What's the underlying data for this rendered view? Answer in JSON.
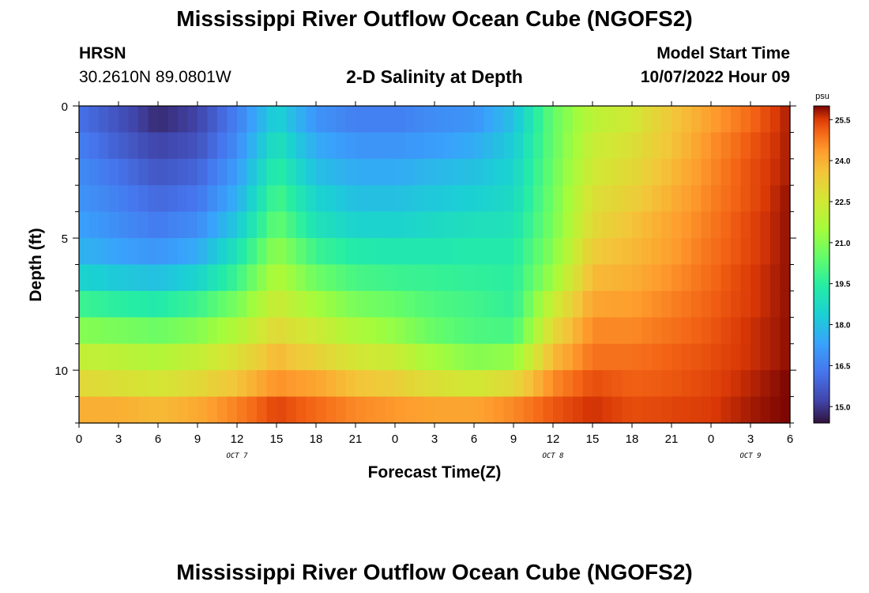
{
  "page": {
    "title_top": "Mississippi River Outflow Ocean Cube (NGOFS2)",
    "title_bottom": "Mississippi River Outflow Ocean Cube (NGOFS2)",
    "station": "HRSN",
    "coordinates": "30.2610N  89.0801W",
    "subtitle": "2-D Salinity at Depth",
    "model_start_label": "Model Start Time",
    "model_start_value": "10/07/2022 Hour 09"
  },
  "chart_data": {
    "type": "heatmap",
    "title": "2-D Salinity at Depth",
    "xlabel": "Forecast Time(Z)",
    "ylabel": "Depth (ft)",
    "x_hours_range": [
      0,
      54
    ],
    "x_tick_hours": [
      0,
      3,
      6,
      9,
      12,
      15,
      18,
      21,
      24,
      27,
      30,
      33,
      36,
      39,
      42,
      45,
      48,
      51,
      54
    ],
    "x_tick_labels": [
      "0",
      "3",
      "6",
      "9",
      "12",
      "15",
      "18",
      "21",
      "0",
      "3",
      "6",
      "9",
      "12",
      "15",
      "18",
      "21",
      "0",
      "3",
      "6"
    ],
    "date_labels": [
      {
        "text": "OCT 7",
        "hour": 12
      },
      {
        "text": "OCT 8",
        "hour": 36
      },
      {
        "text": "OCT 9",
        "hour": 51
      }
    ],
    "y_range_ft": [
      0,
      12
    ],
    "y_tick_values": [
      0,
      5,
      10
    ],
    "y_tick_labels": [
      "0",
      "5",
      "10"
    ],
    "colorbar": {
      "unit": "psu",
      "min": 14.4,
      "max": 26.0,
      "tick_values": [
        15.0,
        16.5,
        18.0,
        19.5,
        21.0,
        22.5,
        24.0,
        25.5
      ],
      "tick_labels": [
        "15.0",
        "16.5",
        "18.0",
        "19.5",
        "21.0",
        "22.5",
        "24.0",
        "25.5"
      ]
    },
    "depth_layers_ft": [
      0.5,
      1.5,
      2.5,
      3.5,
      4.5,
      5.5,
      6.5,
      7.5,
      8.5,
      9.5,
      10.5,
      11.5
    ],
    "time_hours": [
      0,
      3,
      6,
      9,
      12,
      15,
      18,
      21,
      24,
      27,
      30,
      33,
      36,
      39,
      42,
      45,
      48,
      51,
      54
    ],
    "salinity_psu": [
      [
        16.2,
        15.5,
        14.8,
        15.2,
        16.5,
        18.5,
        17.0,
        16.5,
        16.5,
        16.8,
        17.0,
        18.0,
        20.5,
        22.0,
        22.5,
        23.5,
        24.3,
        25.0,
        25.8
      ],
      [
        16.5,
        15.8,
        15.2,
        15.5,
        16.8,
        19.0,
        17.5,
        17.0,
        17.0,
        17.2,
        17.5,
        18.3,
        20.5,
        22.3,
        22.8,
        23.6,
        24.5,
        25.2,
        25.8
      ],
      [
        16.8,
        16.2,
        15.6,
        15.9,
        17.2,
        19.5,
        18.0,
        17.5,
        17.5,
        17.8,
        18.0,
        18.5,
        20.6,
        22.5,
        23.0,
        23.8,
        24.6,
        25.3,
        25.8
      ],
      [
        17.0,
        16.5,
        16.0,
        16.3,
        17.6,
        20.0,
        18.5,
        18.0,
        18.0,
        18.2,
        18.4,
        18.7,
        20.7,
        22.8,
        23.3,
        24.0,
        24.7,
        25.3,
        25.9
      ],
      [
        17.3,
        16.8,
        16.4,
        16.8,
        18.2,
        20.5,
        19.0,
        18.5,
        18.5,
        18.7,
        18.9,
        19.0,
        20.8,
        23.0,
        23.6,
        24.2,
        24.8,
        25.4,
        25.9
      ],
      [
        17.7,
        17.3,
        17.0,
        17.5,
        19.0,
        21.2,
        19.8,
        19.3,
        19.2,
        19.2,
        19.3,
        19.3,
        21.0,
        23.4,
        23.8,
        24.3,
        24.9,
        25.4,
        25.9
      ],
      [
        18.5,
        18.2,
        18.0,
        18.5,
        19.8,
        21.8,
        20.6,
        20.0,
        19.8,
        19.7,
        19.6,
        19.5,
        21.4,
        23.8,
        24.0,
        24.5,
        25.0,
        25.5,
        25.9
      ],
      [
        19.8,
        19.5,
        19.3,
        19.8,
        20.8,
        22.4,
        21.5,
        20.8,
        20.5,
        20.1,
        19.9,
        19.6,
        22.3,
        24.2,
        24.3,
        24.7,
        25.1,
        25.5,
        25.9
      ],
      [
        21.0,
        20.8,
        20.6,
        21.0,
        21.8,
        23.0,
        22.4,
        21.7,
        21.2,
        20.5,
        20.1,
        20.0,
        23.0,
        24.6,
        24.6,
        24.9,
        25.2,
        25.6,
        25.9
      ],
      [
        22.2,
        22.0,
        21.8,
        22.2,
        22.8,
        23.8,
        23.2,
        22.6,
        22.3,
        21.5,
        21.0,
        21.2,
        23.8,
        24.9,
        24.9,
        25.1,
        25.3,
        25.6,
        25.9
      ],
      [
        23.0,
        22.8,
        22.6,
        23.0,
        23.6,
        24.5,
        24.2,
        23.6,
        23.3,
        22.8,
        22.5,
        23.0,
        24.6,
        25.3,
        25.1,
        25.2,
        25.4,
        25.7,
        26.0
      ],
      [
        24.0,
        24.0,
        23.8,
        24.1,
        24.7,
        25.4,
        25.0,
        24.6,
        24.4,
        24.2,
        24.2,
        24.6,
        25.2,
        25.6,
        25.3,
        25.4,
        25.5,
        25.8,
        26.0
      ]
    ]
  }
}
